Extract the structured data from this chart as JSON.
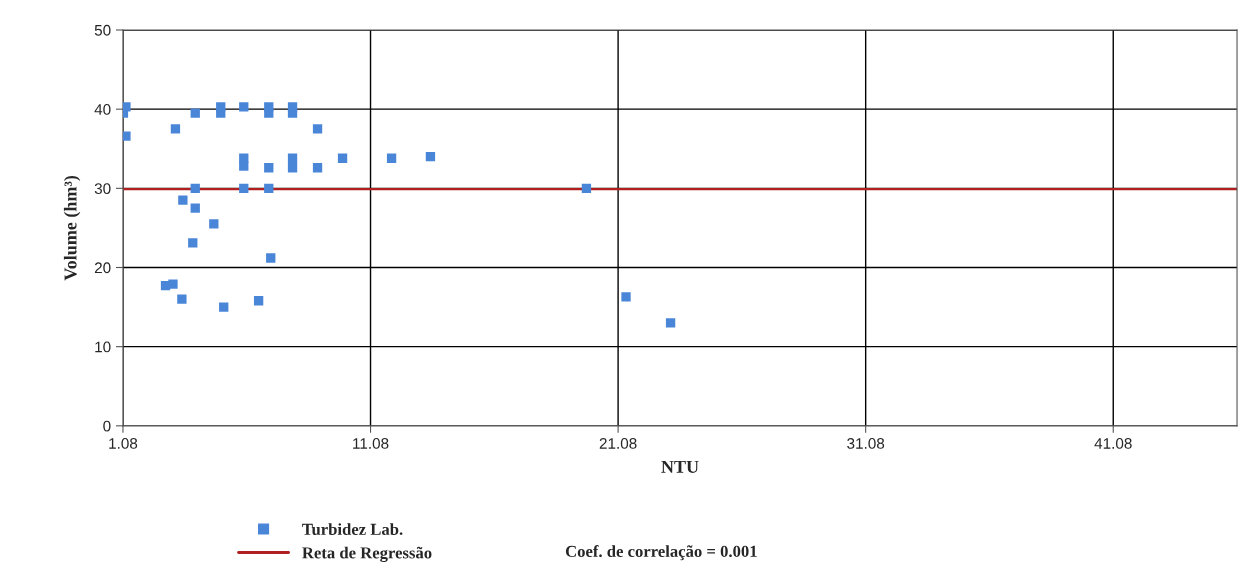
{
  "chart_data": {
    "type": "scatter",
    "xlabel": "NTU",
    "ylabel": "Volume (hm³)",
    "xlim": [
      1.08,
      46.08
    ],
    "xticks": [
      1.08,
      11.08,
      21.08,
      31.08,
      41.08
    ],
    "ylim": [
      0,
      50
    ],
    "yticks": [
      0,
      10,
      20,
      30,
      40,
      50
    ],
    "grid": true,
    "legend": "bottom",
    "marker": "square",
    "series": [
      {
        "name": "Turbidez Lab.",
        "color": "#4a86d8",
        "x": [
          1.2,
          1.1,
          1.2,
          3.2,
          4.0,
          5.03,
          5.03,
          5.96,
          6.97,
          6.97,
          7.93,
          7.93,
          8.94,
          5.96,
          5.96,
          6.97,
          7.93,
          7.93,
          8.94,
          9.95,
          11.93,
          13.5,
          19.8,
          4.0,
          5.96,
          6.97,
          3.5,
          4.0,
          4.75,
          3.9,
          7.05,
          2.8,
          3.1,
          3.46,
          5.15,
          6.56,
          21.4,
          23.2
        ],
        "values": [
          40.3,
          39.5,
          36.6,
          37.5,
          39.5,
          39.5,
          40.3,
          40.3,
          40.3,
          39.5,
          40.3,
          39.5,
          37.5,
          33.8,
          32.8,
          32.6,
          33.8,
          32.6,
          32.6,
          33.8,
          33.8,
          34.0,
          30.0,
          30.0,
          30.0,
          30.0,
          28.5,
          27.5,
          25.5,
          23.1,
          21.2,
          17.7,
          17.9,
          16.0,
          15.0,
          15.8,
          16.3,
          13.0
        ]
      },
      {
        "name": "Reta de Regressão",
        "color": "#b02020",
        "type": "line",
        "marker": "none",
        "x": [
          1.08,
          46.08
        ],
        "values": [
          29.9,
          29.9
        ]
      }
    ],
    "annotations": [
      "Coef. de correlação = 0.001"
    ]
  }
}
